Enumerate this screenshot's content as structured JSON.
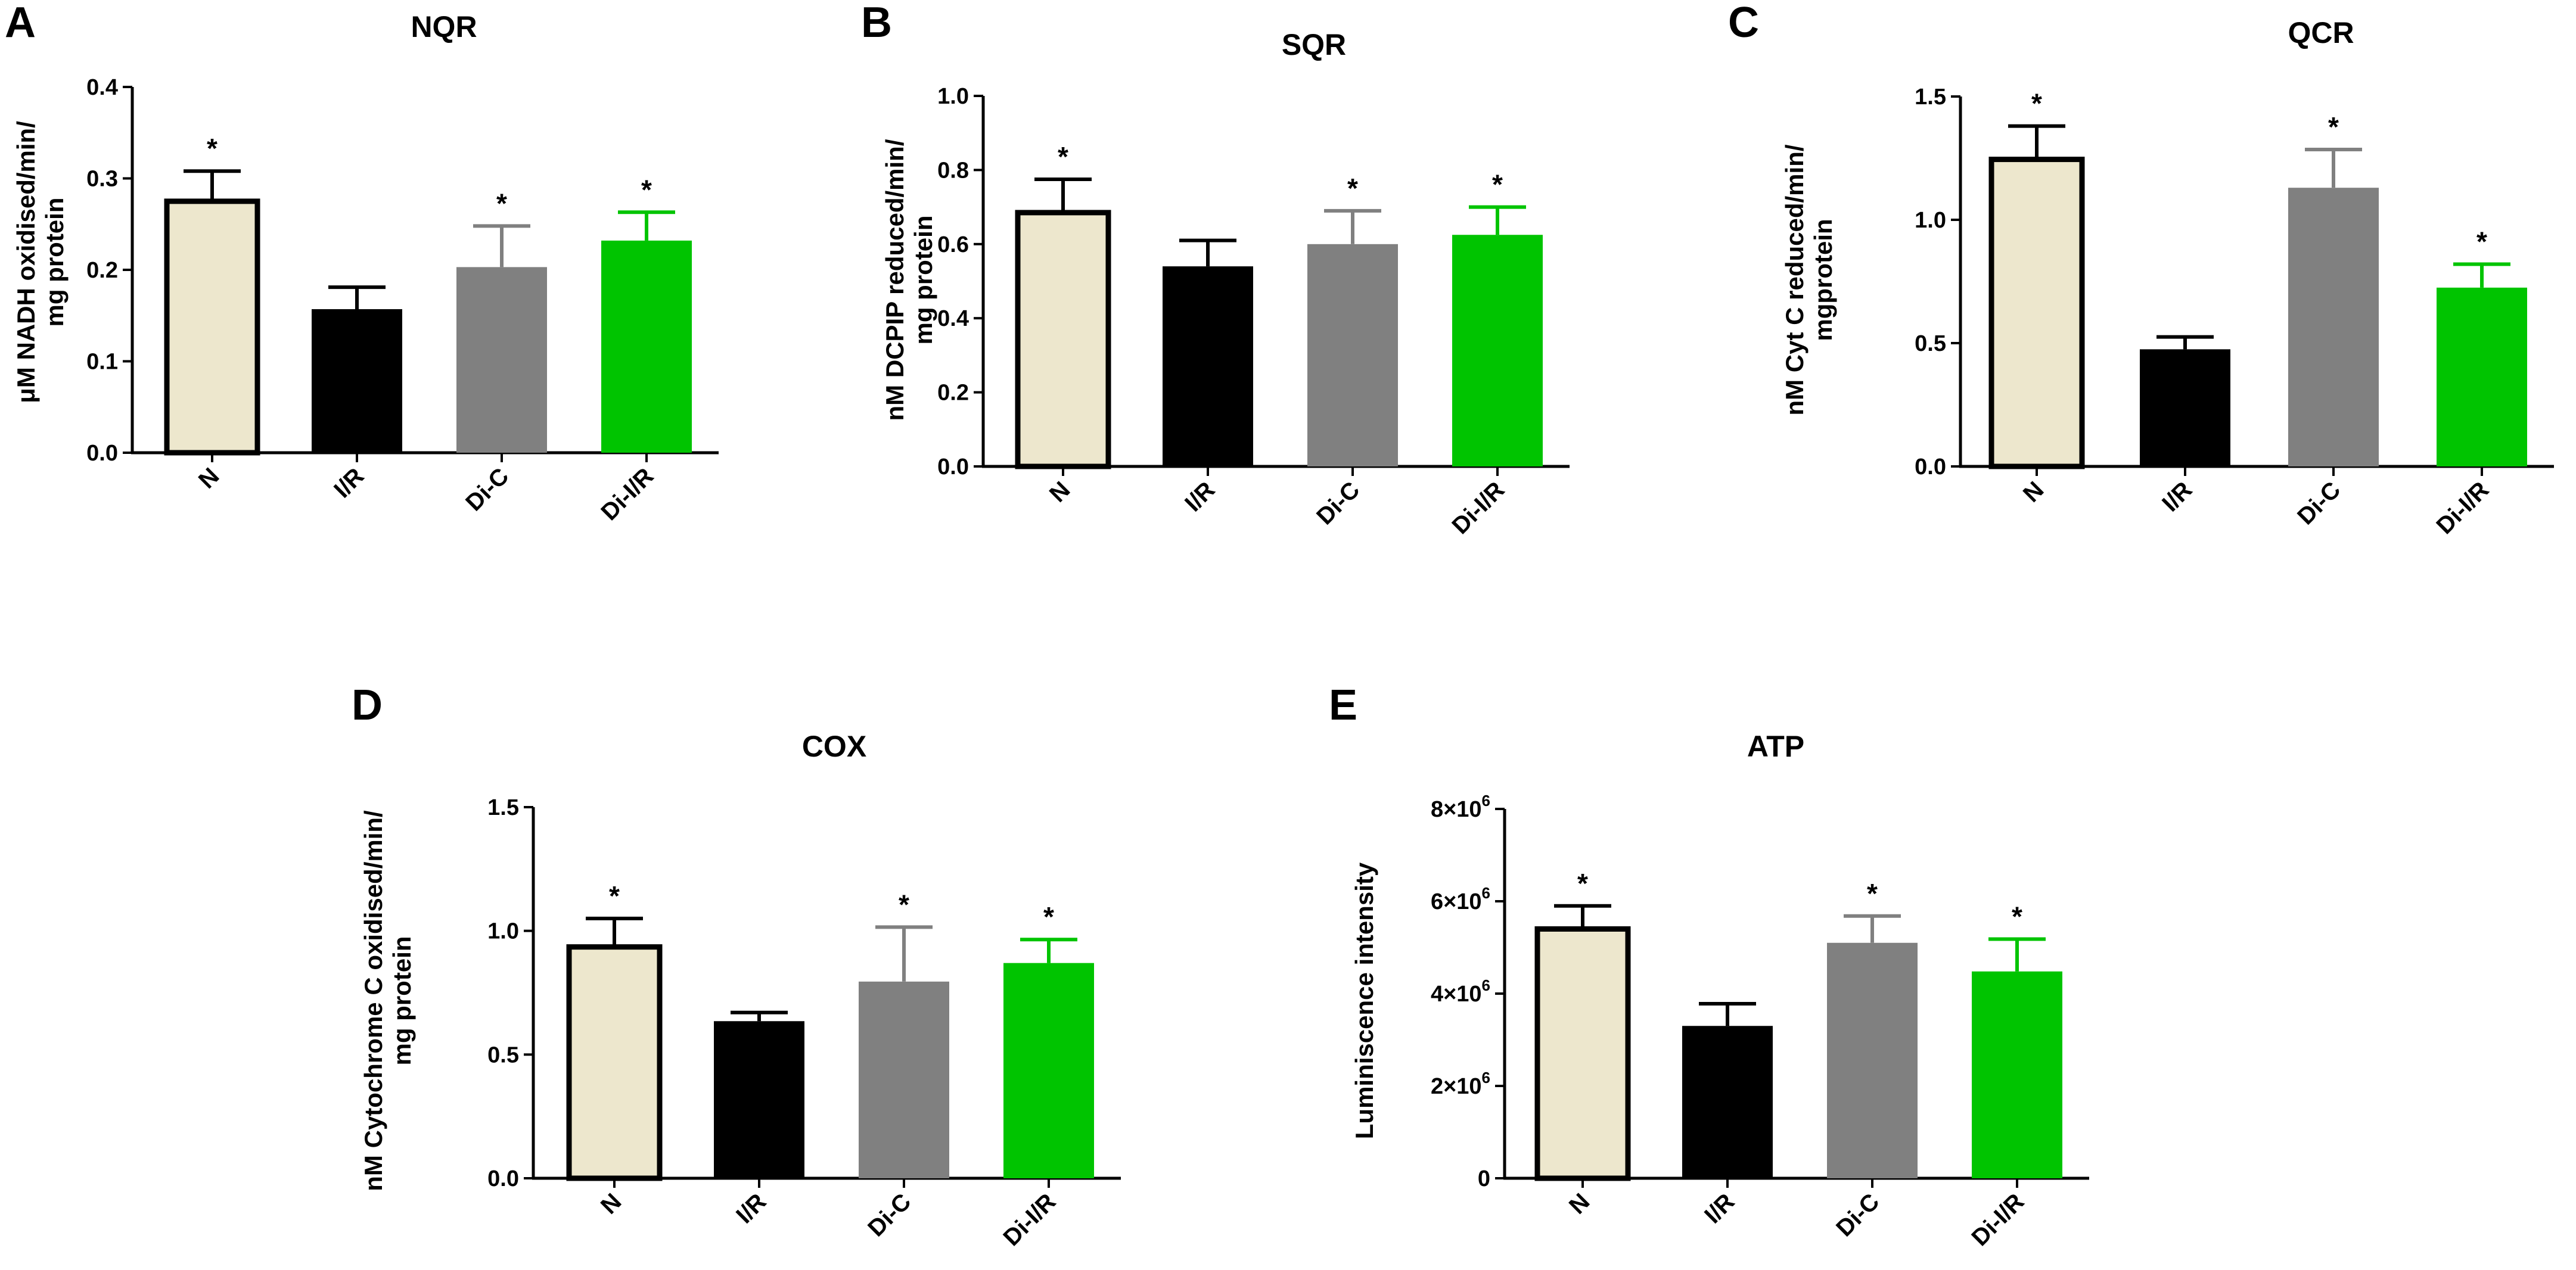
{
  "colors": {
    "N": "#ede7cd",
    "I/R": "#000000",
    "Di-C": "#808080",
    "Di-I/R": "#00c400",
    "edge": "#000000"
  },
  "chart_data": [
    {
      "panel": "A",
      "type": "bar",
      "title": "NQR",
      "ylabel_lines": [
        "μM NADH oxidised/min/",
        "mg protein"
      ],
      "categories": [
        "N",
        "I/R",
        "Di-C",
        "Di-I/R"
      ],
      "values": [
        0.275,
        0.157,
        0.203,
        0.232
      ],
      "errors": [
        0.033,
        0.024,
        0.045,
        0.031
      ],
      "significance": [
        "*",
        "",
        "*",
        "*"
      ],
      "ylim": [
        0,
        0.4
      ],
      "yticks": [
        0.0,
        0.1,
        0.2,
        0.3,
        0.4
      ],
      "ytick_labels": [
        "0.0",
        "0.1",
        "0.2",
        "0.3",
        "0.4"
      ],
      "xlabel": ""
    },
    {
      "panel": "B",
      "type": "bar",
      "title": "SQR",
      "ylabel_lines": [
        "nM DCPIP reduced/min/",
        "mg protein"
      ],
      "categories": [
        "N",
        "I/R",
        "Di-C",
        "Di-I/R"
      ],
      "values": [
        0.685,
        0.54,
        0.6,
        0.625
      ],
      "errors": [
        0.09,
        0.07,
        0.09,
        0.075
      ],
      "significance": [
        "*",
        "",
        "*",
        "*"
      ],
      "ylim": [
        0,
        1.0
      ],
      "yticks": [
        0.0,
        0.2,
        0.4,
        0.6,
        0.8,
        1.0
      ],
      "ytick_labels": [
        "0.0",
        "0.2",
        "0.4",
        "0.6",
        "0.8",
        "1.0"
      ],
      "xlabel": ""
    },
    {
      "panel": "C",
      "type": "bar",
      "title": "QCR",
      "ylabel_lines": [
        "nM Cyt C reduced/min/",
        "mgprotein"
      ],
      "categories": [
        "N",
        "I/R",
        "Di-C",
        "Di-I/R"
      ],
      "values": [
        1.245,
        0.475,
        1.13,
        0.725
      ],
      "errors": [
        0.135,
        0.05,
        0.155,
        0.095
      ],
      "significance": [
        "*",
        "",
        "*",
        "*"
      ],
      "ylim": [
        0,
        1.5
      ],
      "yticks": [
        0.0,
        0.5,
        1.0,
        1.5
      ],
      "ytick_labels": [
        "0.0",
        "0.5",
        "1.0",
        "1.5"
      ],
      "xlabel": ""
    },
    {
      "panel": "D",
      "type": "bar",
      "title": "COX",
      "ylabel_lines": [
        "nM Cytochrome C oxidised/min/",
        "mg protein"
      ],
      "categories": [
        "N",
        "I/R",
        "Di-C",
        "Di-I/R"
      ],
      "values": [
        0.935,
        0.635,
        0.795,
        0.87
      ],
      "errors": [
        0.115,
        0.035,
        0.22,
        0.095
      ],
      "significance": [
        "*",
        "",
        "*",
        "*"
      ],
      "ylim": [
        0,
        1.5
      ],
      "yticks": [
        0.0,
        0.5,
        1.0,
        1.5
      ],
      "ytick_labels": [
        "0.0",
        "0.5",
        "1.0",
        "1.5"
      ],
      "xlabel": ""
    },
    {
      "panel": "E",
      "type": "bar",
      "title": "ATP",
      "ylabel_lines": [
        "Luminiscence intensity"
      ],
      "categories": [
        "N",
        "I/R",
        "Di-C",
        "Di-I/R"
      ],
      "values": [
        5400000,
        3300000,
        5100000,
        4480000
      ],
      "errors": [
        500000,
        480000,
        580000,
        700000
      ],
      "significance": [
        "*",
        "",
        "*",
        "*"
      ],
      "ylim": [
        0,
        8000000
      ],
      "yticks": [
        0,
        2000000,
        4000000,
        6000000,
        8000000
      ],
      "ytick_labels": [
        "0",
        "2×10",
        "4×10",
        "6×10",
        "8×10"
      ],
      "ytick_exponents": [
        "",
        "6",
        "6",
        "6",
        "6"
      ],
      "xlabel": ""
    }
  ]
}
